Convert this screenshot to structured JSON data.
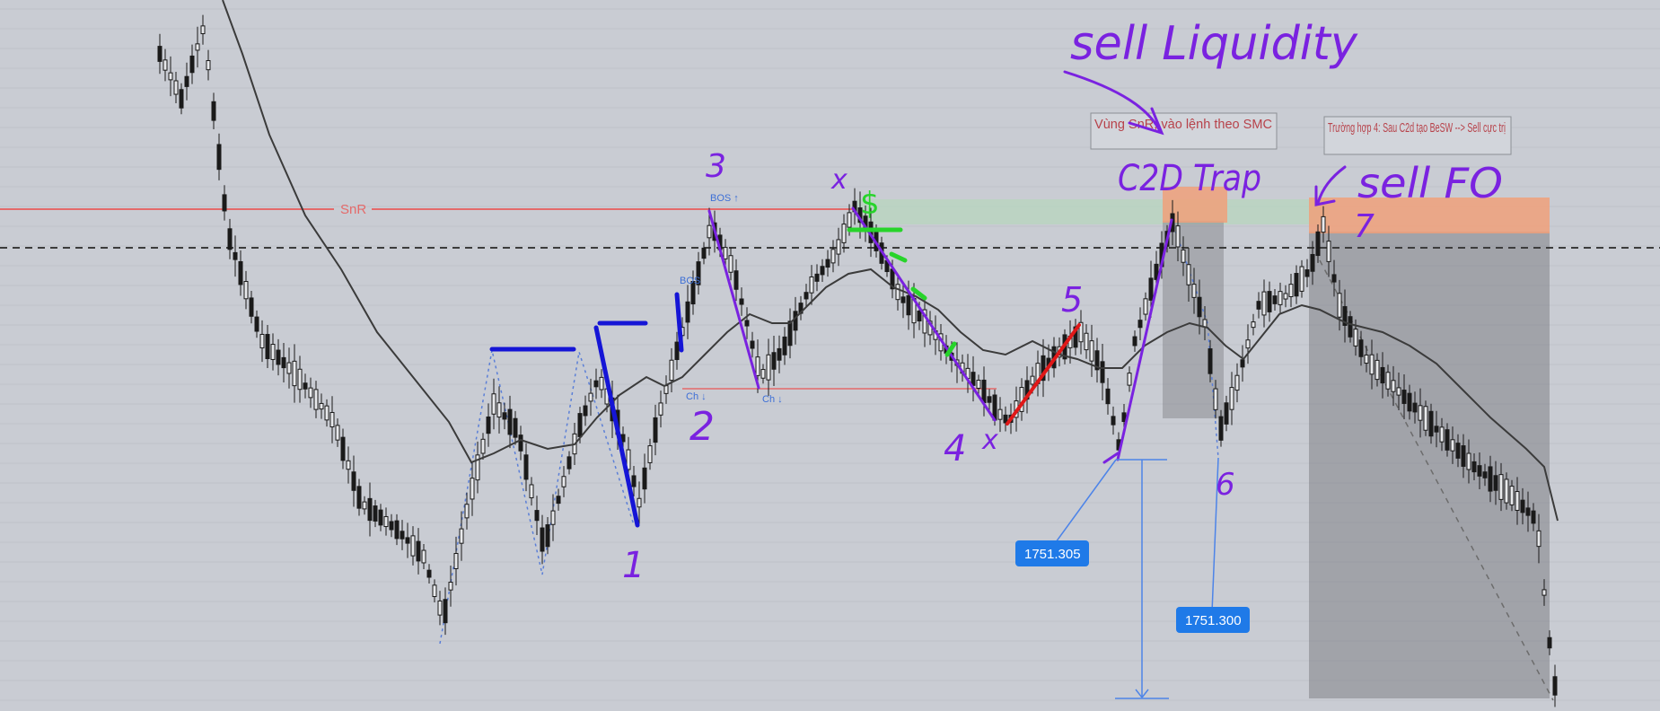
{
  "chart_data": {
    "type": "candlestick",
    "level_labels": {
      "snr": "SnR"
    },
    "structure_labels": {
      "bos1": "BOS ↑",
      "bos2": "BOS",
      "ch1": "Ch ↓",
      "ch2": "Ch ↓"
    },
    "swing_labels": [
      "1",
      "2",
      "3",
      "4",
      "5",
      "6",
      "7"
    ],
    "x_marks": [
      "x",
      "x"
    ],
    "handwritten": {
      "sell_liquidity": "sell Liquidity",
      "c2d_trap": "C2D Trap",
      "sell_fo": "sell FO",
      "dollar": "$"
    },
    "notes": {
      "zone_note": "Vùng SnR, vào lệnh theo SMC",
      "case_note": "Trường hợp 4: Sau C2d tạo BeSW --> Sell cực trị"
    },
    "price_tags": [
      "1751.305",
      "1751.300"
    ],
    "colors": {
      "background": "#c9ccd3",
      "candles": "#1a1a1a",
      "moving_average": "#3b3b3b",
      "snr_line": "#e46a6a",
      "purple_drawing": "#7a22e0",
      "blue_drawing": "#1515d6",
      "red_drawing": "#e01818",
      "green_drawing": "#27d42a",
      "sell_zone": "#f0a07a",
      "green_zone": "#b7d6bd",
      "gray_zone": "#7f8187",
      "price_tag": "#1f7ae8"
    }
  }
}
